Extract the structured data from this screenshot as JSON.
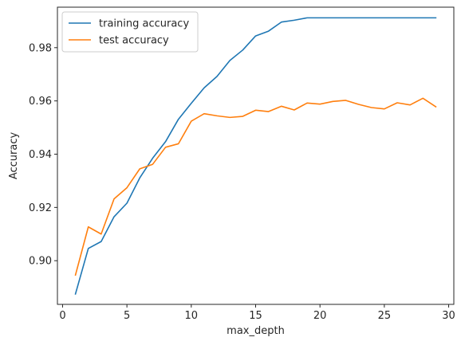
{
  "chart_data": {
    "type": "line",
    "title": "",
    "xlabel": "max_depth",
    "ylabel": "Accuracy",
    "xlim": [
      -0.4,
      30.4
    ],
    "ylim": [
      0.8836,
      0.9952
    ],
    "xticks": [
      0,
      5,
      10,
      15,
      20,
      25,
      30
    ],
    "yticks": [
      0.9,
      0.92,
      0.94,
      0.96,
      0.98
    ],
    "ytick_decimals": 2,
    "grid": false,
    "legend": "top-left",
    "x": [
      1,
      2,
      3,
      4,
      5,
      6,
      7,
      8,
      9,
      10,
      11,
      12,
      13,
      14,
      15,
      16,
      17,
      18,
      19,
      20,
      21,
      22,
      23,
      24,
      25,
      26,
      27,
      28,
      29
    ],
    "series": [
      {
        "name": "training accuracy",
        "color": "#1f77b4",
        "values": [
          0.8875,
          0.9046,
          0.9072,
          0.9165,
          0.9216,
          0.9311,
          0.9385,
          0.9447,
          0.9531,
          0.9591,
          0.9649,
          0.9692,
          0.9752,
          0.9791,
          0.9844,
          0.9862,
          0.9896,
          0.9903,
          0.9912,
          0.9912,
          0.9912,
          0.9912,
          0.9912,
          0.9912,
          0.9912,
          0.9912,
          0.9912,
          0.9912,
          0.9912
        ]
      },
      {
        "name": "test accuracy",
        "color": "#ff7f0e",
        "values": [
          0.8946,
          0.9127,
          0.91,
          0.9232,
          0.9274,
          0.9345,
          0.9362,
          0.9426,
          0.9439,
          0.9524,
          0.9552,
          0.9544,
          0.9538,
          0.9542,
          0.9565,
          0.956,
          0.958,
          0.9566,
          0.9592,
          0.9588,
          0.9598,
          0.9602,
          0.9587,
          0.9575,
          0.957,
          0.9593,
          0.9585,
          0.961,
          0.9578
        ]
      }
    ]
  }
}
